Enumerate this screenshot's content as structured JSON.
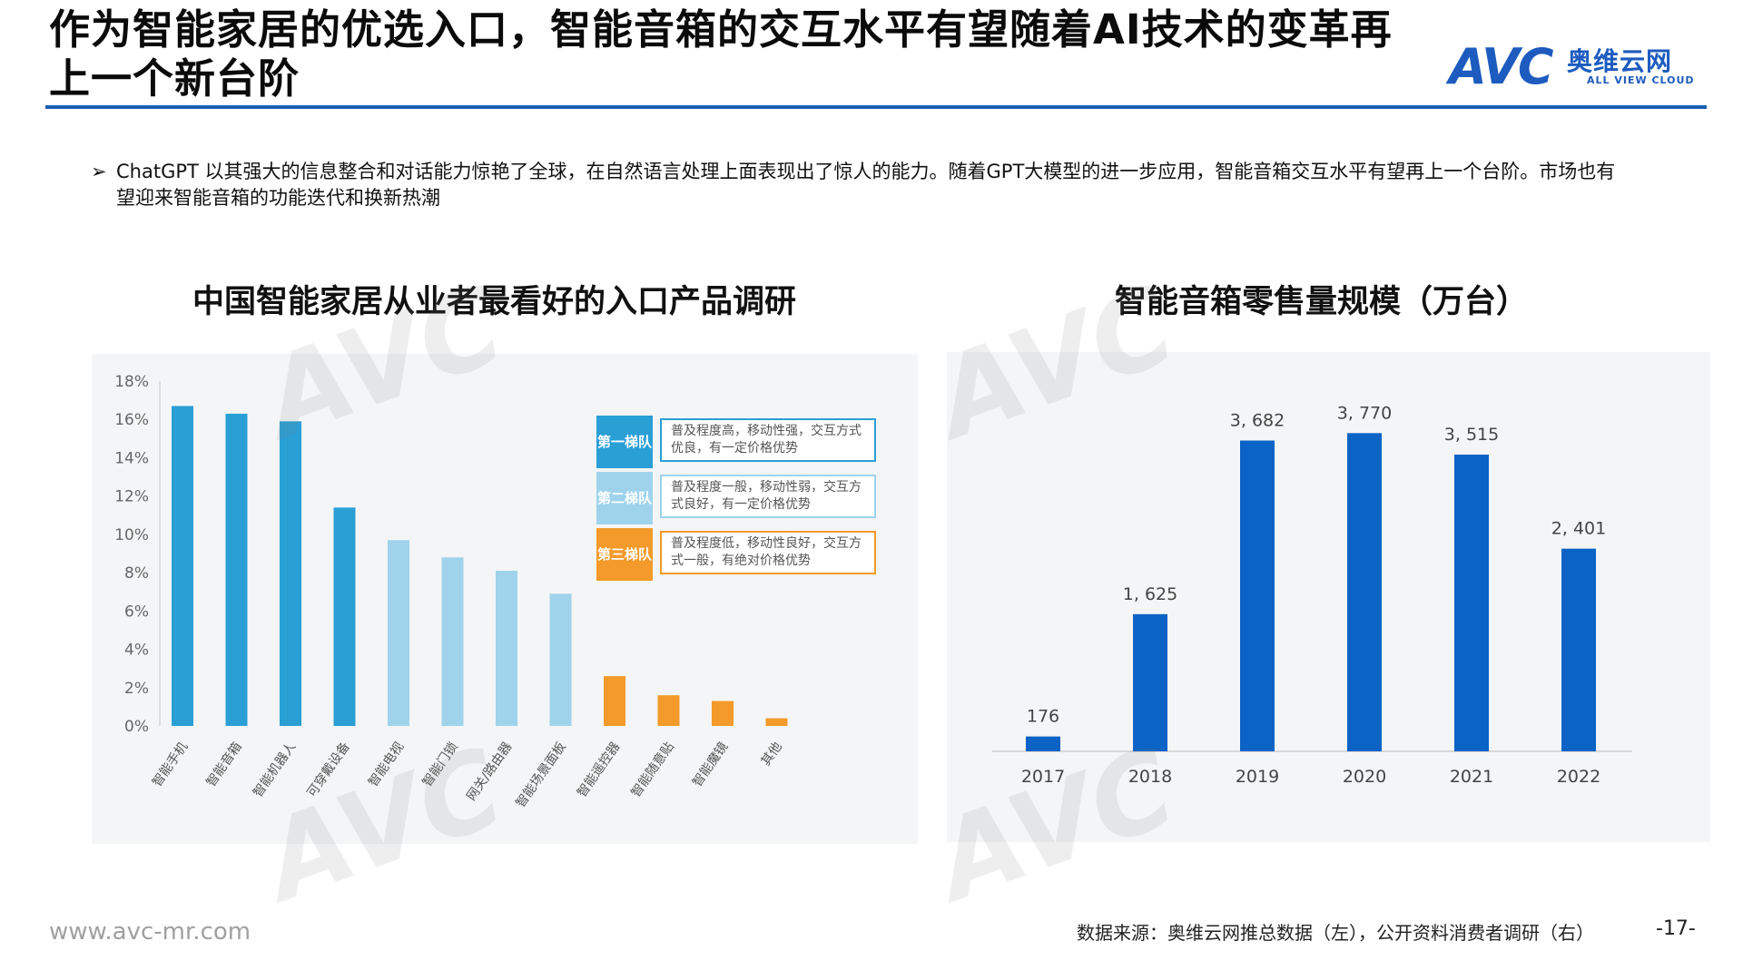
{
  "title": "作为智能家居的优选入口，智能音箱的交互水平有望随着AI技术的变革再上一个新台阶",
  "logo": {
    "avc": "AVC",
    "cn": "奥维云网",
    "en": "ALL VIEW CLOUD"
  },
  "bullet": {
    "marker": "➢",
    "text": "ChatGPT 以其强大的信息整合和对话能力惊艳了全球，在自然语言处理上面表现出了惊人的能力。随着GPT大模型的进一步应用，智能音箱交互水平有望再上一个台阶。市场也有望迎来智能音箱的功能迭代和换新热潮"
  },
  "footer": {
    "url": "www.avc-mr.com",
    "source": "数据来源：奥维云网推总数据（左），公开资料消费者调研（右）",
    "page": "-17-"
  },
  "colors": {
    "tier1": "#2a9fd6",
    "tier2": "#9fd3ec",
    "tier3": "#f39a2a",
    "bar_right": "#0b63c5",
    "brand": "#1d5bbf"
  },
  "tiers": [
    {
      "tag": "第一梯队",
      "desc": "普及程度高，移动性强，交互方式优良，有一定价格优势",
      "color": "#2a9fd6"
    },
    {
      "tag": "第二梯队",
      "desc": "普及程度一般，移动性弱，交互方式良好，有一定价格优势",
      "color": "#9fd3ec"
    },
    {
      "tag": "第三梯队",
      "desc": "普及程度低，移动性良好，交互方式一般，有绝对价格优势",
      "color": "#f39a2a"
    }
  ],
  "chart_data": [
    {
      "type": "bar",
      "title": "中国智能家居从业者最看好的入口产品调研",
      "categories": [
        "智能手机",
        "智能音箱",
        "智能机器人",
        "可穿戴设备",
        "智能电视",
        "智能门锁",
        "网关/路由器",
        "智能场景面板",
        "智能遥控器",
        "智能随意贴",
        "智能魔镜",
        "其他"
      ],
      "values": [
        16.7,
        16.3,
        15.9,
        11.4,
        9.7,
        8.8,
        8.1,
        6.9,
        2.6,
        1.6,
        1.3,
        0.4
      ],
      "tier": [
        1,
        1,
        1,
        1,
        2,
        2,
        2,
        2,
        3,
        3,
        3,
        3
      ],
      "ylim": [
        0,
        18
      ],
      "yticks": [
        "0%",
        "2%",
        "4%",
        "6%",
        "8%",
        "10%",
        "12%",
        "14%",
        "16%",
        "18%"
      ],
      "grid": false
    },
    {
      "type": "bar",
      "title": "智能音箱零售量规模（万台）",
      "categories": [
        "2017",
        "2018",
        "2019",
        "2020",
        "2021",
        "2022"
      ],
      "values": [
        176,
        1625,
        3682,
        3770,
        3515,
        2401
      ],
      "labels": [
        "176",
        "1, 625",
        "3, 682",
        "3, 770",
        "3, 515",
        "2, 401"
      ],
      "ylim": [
        0,
        4300
      ],
      "grid": false
    }
  ]
}
